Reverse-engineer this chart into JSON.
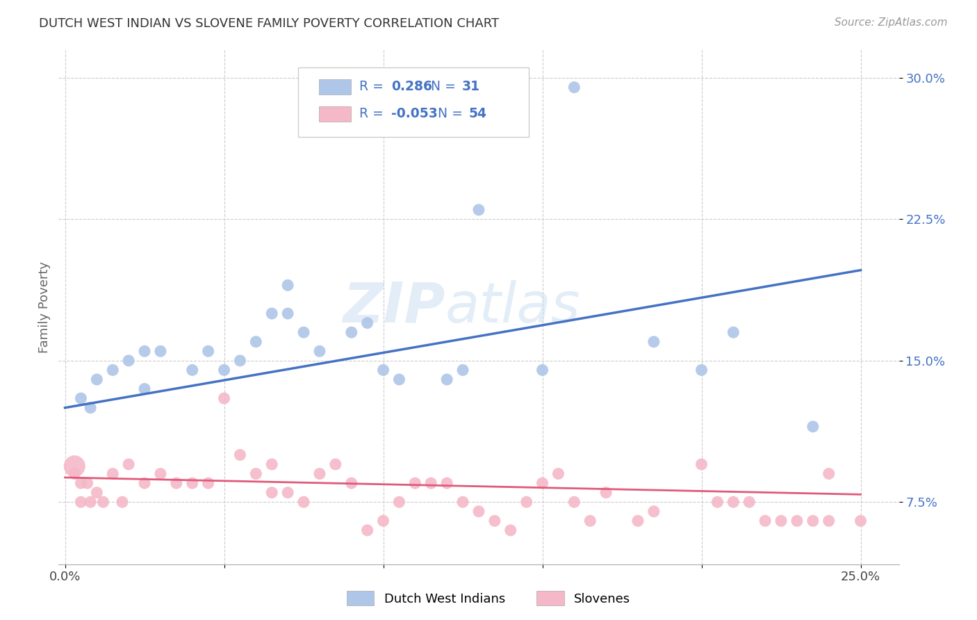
{
  "title": "DUTCH WEST INDIAN VS SLOVENE FAMILY POVERTY CORRELATION CHART",
  "source": "Source: ZipAtlas.com",
  "ylabel": "Family Poverty",
  "y_ticks": [
    0.075,
    0.15,
    0.225,
    0.3
  ],
  "y_tick_labels": [
    "7.5%",
    "15.0%",
    "22.5%",
    "30.0%"
  ],
  "x_ticks": [
    0.0,
    0.05,
    0.1,
    0.15,
    0.2,
    0.25
  ],
  "x_tick_labels": [
    "0.0%",
    "",
    "",
    "",
    "",
    "25.0%"
  ],
  "blue_color": "#aec6e8",
  "pink_color": "#f4b8c8",
  "blue_line_color": "#4472c4",
  "pink_line_color": "#e05a7a",
  "watermark_zip": "ZIP",
  "watermark_atlas": "atlas",
  "blue_scatter_x": [
    0.005,
    0.008,
    0.01,
    0.015,
    0.02,
    0.025,
    0.025,
    0.03,
    0.04,
    0.045,
    0.05,
    0.055,
    0.06,
    0.065,
    0.07,
    0.07,
    0.075,
    0.08,
    0.09,
    0.095,
    0.1,
    0.105,
    0.12,
    0.125,
    0.13,
    0.15,
    0.16,
    0.185,
    0.2,
    0.21,
    0.235
  ],
  "blue_scatter_y": [
    0.13,
    0.125,
    0.14,
    0.145,
    0.15,
    0.135,
    0.155,
    0.155,
    0.145,
    0.155,
    0.145,
    0.15,
    0.16,
    0.175,
    0.19,
    0.175,
    0.165,
    0.155,
    0.165,
    0.17,
    0.145,
    0.14,
    0.14,
    0.145,
    0.23,
    0.145,
    0.295,
    0.16,
    0.145,
    0.165,
    0.115
  ],
  "pink_scatter_x": [
    0.003,
    0.005,
    0.005,
    0.007,
    0.008,
    0.01,
    0.012,
    0.015,
    0.018,
    0.02,
    0.025,
    0.03,
    0.035,
    0.04,
    0.045,
    0.05,
    0.055,
    0.06,
    0.065,
    0.065,
    0.07,
    0.075,
    0.08,
    0.085,
    0.09,
    0.095,
    0.1,
    0.105,
    0.11,
    0.115,
    0.12,
    0.125,
    0.13,
    0.135,
    0.14,
    0.145,
    0.15,
    0.155,
    0.16,
    0.165,
    0.17,
    0.18,
    0.185,
    0.2,
    0.205,
    0.21,
    0.215,
    0.22,
    0.225,
    0.23,
    0.235,
    0.24,
    0.24,
    0.25
  ],
  "pink_scatter_y": [
    0.09,
    0.085,
    0.075,
    0.085,
    0.075,
    0.08,
    0.075,
    0.09,
    0.075,
    0.095,
    0.085,
    0.09,
    0.085,
    0.085,
    0.085,
    0.13,
    0.1,
    0.09,
    0.08,
    0.095,
    0.08,
    0.075,
    0.09,
    0.095,
    0.085,
    0.06,
    0.065,
    0.075,
    0.085,
    0.085,
    0.085,
    0.075,
    0.07,
    0.065,
    0.06,
    0.075,
    0.085,
    0.09,
    0.075,
    0.065,
    0.08,
    0.065,
    0.07,
    0.095,
    0.075,
    0.075,
    0.075,
    0.065,
    0.065,
    0.065,
    0.065,
    0.065,
    0.09,
    0.065
  ],
  "pink_large_x": [
    0.003
  ],
  "pink_large_y": [
    0.094
  ],
  "blue_line_x0": 0.0,
  "blue_line_x1": 0.25,
  "blue_line_y0": 0.125,
  "blue_line_y1": 0.198,
  "pink_line_x0": 0.0,
  "pink_line_x1": 0.25,
  "pink_line_y0": 0.088,
  "pink_line_y1": 0.079,
  "xlim": [
    -0.002,
    0.262
  ],
  "ylim": [
    0.042,
    0.315
  ],
  "legend_r1_val": "0.286",
  "legend_r1_n": "31",
  "legend_r2_val": "-0.053",
  "legend_r2_n": "54",
  "legend_label1": "Dutch West Indians",
  "legend_label2": "Slovenes"
}
